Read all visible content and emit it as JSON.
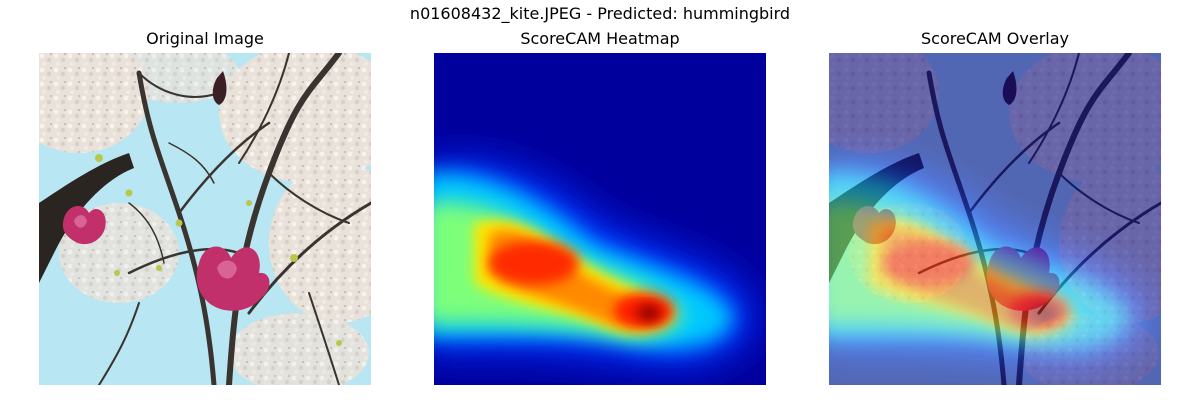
{
  "figure": {
    "suptitle": "n01608432_kite.JPEG - Predicted: hummingbird"
  },
  "panels": [
    {
      "title": "Original Image"
    },
    {
      "title": "ScoreCAM Heatmap"
    },
    {
      "title": "ScoreCAM Overlay"
    }
  ],
  "colors": {
    "sky": "#b8e6f2",
    "blossom": "#ece3d9",
    "branch": "#3a3430",
    "magnolia": "#c2306b",
    "heat_low": "#00007f",
    "heat_high": "#7f0000"
  }
}
